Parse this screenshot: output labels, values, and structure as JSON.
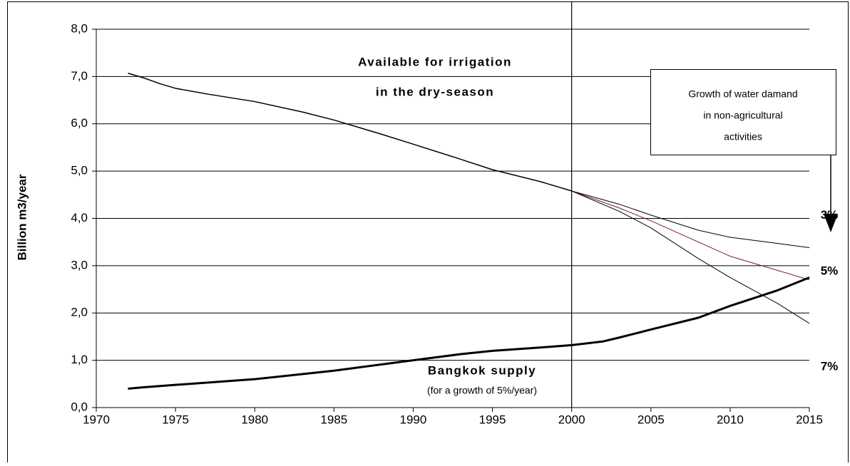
{
  "chart_data": {
    "type": "line",
    "y_label": "Billion m3/year",
    "xlim": [
      1970,
      2015
    ],
    "xticks": [
      1970,
      1975,
      1980,
      1985,
      1990,
      1995,
      2000,
      2005,
      2010,
      2015
    ],
    "ylim": [
      0,
      8
    ],
    "yticks": [
      {
        "value": 0,
        "label": "0,0"
      },
      {
        "value": 1,
        "label": "1,0"
      },
      {
        "value": 2,
        "label": "2,0"
      },
      {
        "value": 3,
        "label": "3,0"
      },
      {
        "value": 4,
        "label": "4,0"
      },
      {
        "value": 5,
        "label": "5,0"
      },
      {
        "value": 6,
        "label": "6,0"
      },
      {
        "value": 7,
        "label": "7,0"
      },
      {
        "value": 8,
        "label": "8,0"
      }
    ],
    "grid": true,
    "vline": 2000,
    "annotations": {
      "available": [
        "Available for irrigation",
        "in the dry-season"
      ],
      "growth": [
        "Growth of water damand",
        "in non-agricultural",
        "activities"
      ],
      "bangkok": [
        "Bangkok supply",
        "(for a growth of 5%/year)"
      ]
    },
    "series": [
      {
        "color": "#000000",
        "width": 1.5,
        "x": [
          1972,
          1973,
          1974,
          1975,
          1977,
          1980,
          1983,
          1985,
          1988,
          1990,
          1993,
          1995,
          1998,
          2000
        ],
        "values": [
          7.07,
          6.97,
          6.85,
          6.75,
          6.63,
          6.47,
          6.25,
          6.08,
          5.78,
          5.57,
          5.25,
          5.03,
          4.78,
          4.58
        ]
      },
      {
        "name": "3%",
        "color": "#000000",
        "width": 1,
        "x": [
          2000,
          2003,
          2005,
          2008,
          2010,
          2013,
          2015
        ],
        "values": [
          4.58,
          4.3,
          4.07,
          3.75,
          3.6,
          3.47,
          3.38
        ]
      },
      {
        "name": "5%",
        "color": "#7a1f1f",
        "width": 1,
        "x": [
          2000,
          2003,
          2005,
          2008,
          2010,
          2013,
          2015
        ],
        "values": [
          4.58,
          4.22,
          3.95,
          3.5,
          3.2,
          2.9,
          2.7
        ]
      },
      {
        "name": "7%",
        "color": "#000000",
        "width": 1,
        "x": [
          2000,
          2003,
          2005,
          2008,
          2010,
          2013,
          2015
        ],
        "values": [
          4.58,
          4.15,
          3.8,
          3.15,
          2.75,
          2.2,
          1.78
        ]
      },
      {
        "color": "#000000",
        "width": 3,
        "x": [
          1972,
          1973,
          1975,
          1980,
          1985,
          1990,
          1993,
          1995,
          1998,
          2000,
          2002,
          2003,
          2005,
          2008,
          2010,
          2013,
          2015
        ],
        "values": [
          0.4,
          0.43,
          0.48,
          0.6,
          0.78,
          1.0,
          1.13,
          1.2,
          1.27,
          1.32,
          1.4,
          1.48,
          1.65,
          1.9,
          2.15,
          2.48,
          2.75
        ]
      }
    ]
  }
}
